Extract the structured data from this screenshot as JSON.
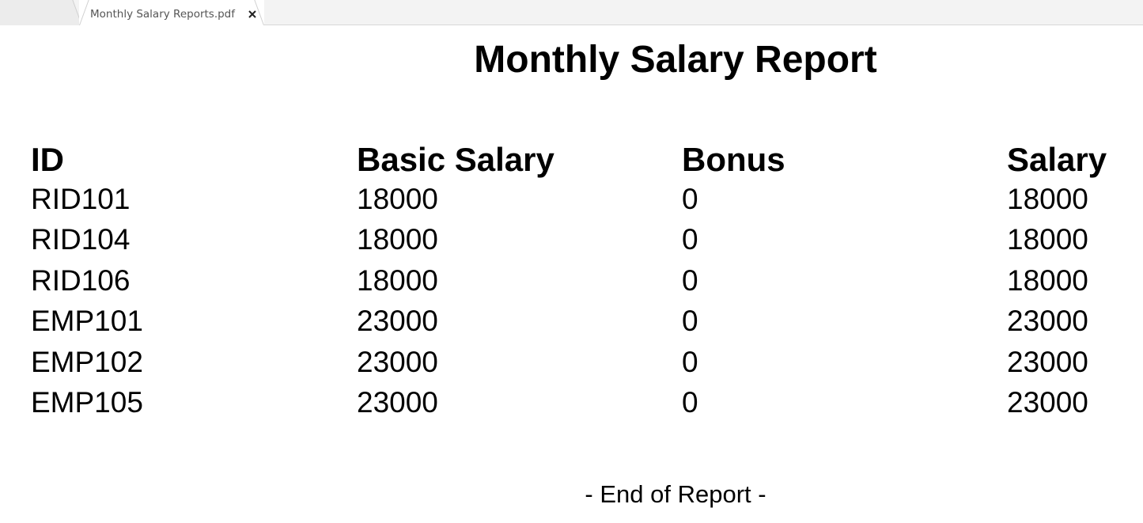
{
  "tab": {
    "title": "Monthly Salary Reports.pdf",
    "close_icon": "close-icon"
  },
  "report": {
    "title": "Monthly Salary Report",
    "columns": [
      "ID",
      "Basic Salary",
      "Bonus",
      "Salary"
    ],
    "rows": [
      [
        "RID101",
        "18000",
        "0",
        "18000"
      ],
      [
        "RID104",
        "18000",
        "0",
        "18000"
      ],
      [
        "RID106",
        "18000",
        "0",
        "18000"
      ],
      [
        "EMP101",
        "23000",
        "0",
        "23000"
      ],
      [
        "EMP102",
        "23000",
        "0",
        "23000"
      ],
      [
        "EMP105",
        "23000",
        "0",
        "23000"
      ]
    ],
    "footer": "- End of Report -"
  }
}
